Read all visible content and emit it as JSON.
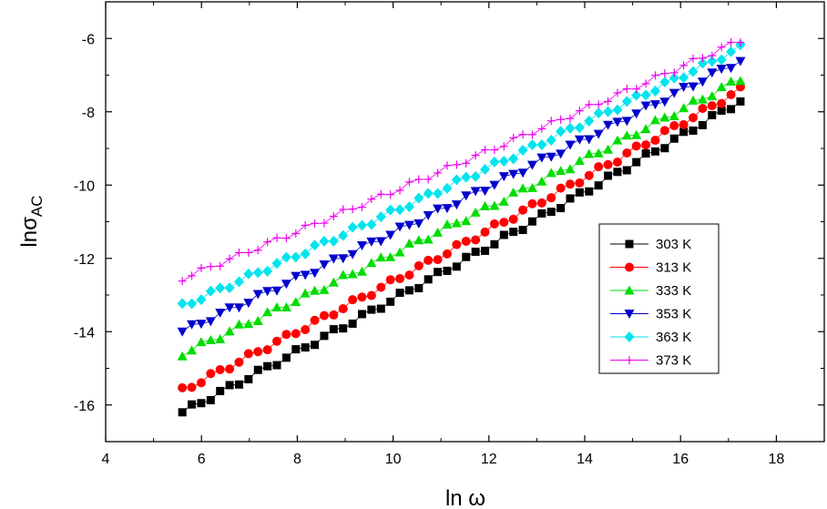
{
  "chart_data": {
    "type": "scatter",
    "xlabel": {
      "text": "ln ω"
    },
    "ylabel": {
      "main": "lnσ",
      "sub": "AC"
    },
    "xlim": [
      4,
      19
    ],
    "ylim": [
      -17,
      -5
    ],
    "x_ticks": [
      4,
      6,
      8,
      10,
      12,
      14,
      16,
      18
    ],
    "y_ticks": [
      -16,
      -14,
      -12,
      -10,
      -8,
      -6
    ],
    "grid": false,
    "legend_position": "right-center",
    "series": [
      {
        "name": "303 K",
        "color": "#000000",
        "marker": "square",
        "y_start": -16.2,
        "y_end": -7.7
      },
      {
        "name": "313 K",
        "color": "#ff0000",
        "marker": "circle",
        "y_start": -15.6,
        "y_end": -7.4
      },
      {
        "name": "333 K",
        "color": "#00dd00",
        "marker": "triangle-up",
        "y_start": -14.6,
        "y_end": -7.1
      },
      {
        "name": "353 K",
        "color": "#0000cc",
        "marker": "triangle-down",
        "y_start": -14.0,
        "y_end": -6.6
      },
      {
        "name": "363 K",
        "color": "#00e5ee",
        "marker": "diamond",
        "y_start": -13.3,
        "y_end": -6.25
      },
      {
        "name": "373 K",
        "color": "#ee00ee",
        "marker": "plus",
        "y_start": -12.55,
        "y_end": -6.05
      }
    ],
    "x_start": 5.6,
    "x_end": 17.25,
    "points_per_series": 60
  }
}
